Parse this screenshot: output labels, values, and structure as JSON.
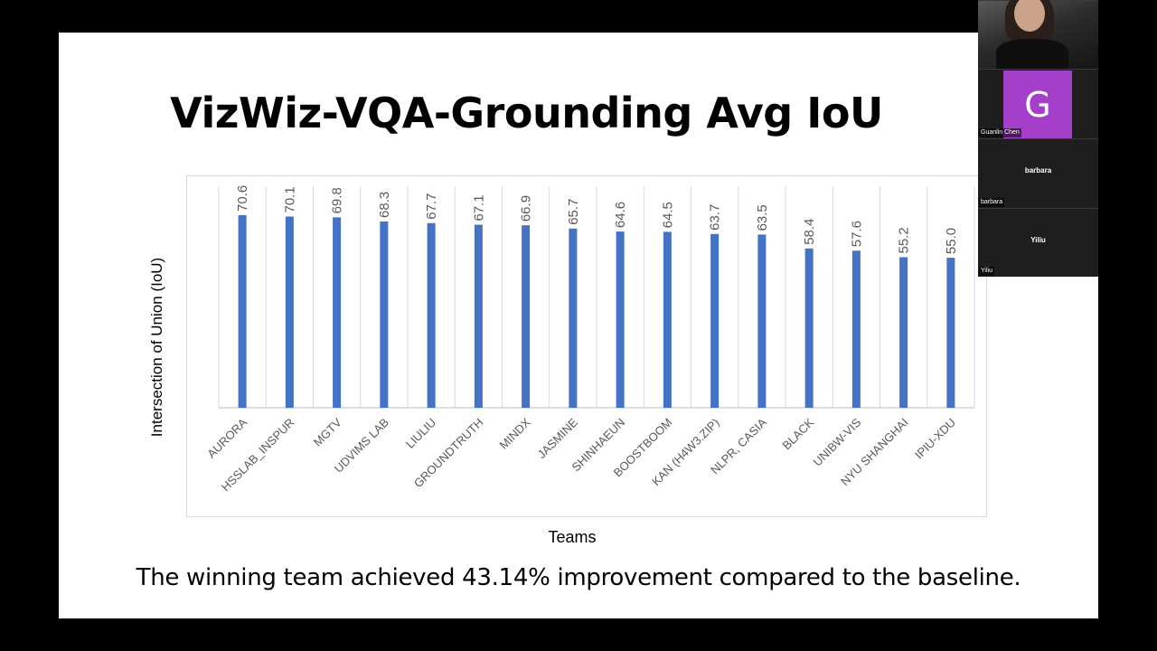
{
  "slide": {
    "title": "VizWiz-VQA-Grounding Avg IoU",
    "caption": "The winning team achieved 43.14% improvement compared to the baseline."
  },
  "chart_data": {
    "type": "bar",
    "categories": [
      "AURORA",
      "HSSLAB_INSPUR",
      "MGTV",
      "UDVIMS LAB",
      "LIULIU",
      "GROUNDTRUTH",
      "MINDX",
      "JASMINE",
      "SHINHAEUN",
      "BOOSTBOOM",
      "KAN (H4W3.ZIP)",
      "NLPR, CASIA",
      "BLACK",
      "UNIBW-VIS",
      "NYU SHANGHAI",
      "IPIU-XDU"
    ],
    "values": [
      70.6,
      70.1,
      69.8,
      68.3,
      67.7,
      67.1,
      66.9,
      65.7,
      64.6,
      64.5,
      63.7,
      63.5,
      58.4,
      57.6,
      55.2,
      55.0
    ],
    "value_labels": [
      "70.6",
      "70.1",
      "69.8",
      "68.3",
      "67.7",
      "67.1",
      "66.9",
      "65.7",
      "64.6",
      "64.5",
      "63.7",
      "63.5",
      "58.4",
      "57.6",
      "55.2",
      "55.0"
    ],
    "xlabel": "Teams",
    "ylabel": "Intersection of Union (IoU)",
    "ylim": [
      0,
      100
    ],
    "grid": "vertical",
    "bar_color": "#4472c4"
  },
  "participants": [
    {
      "name": "Guanlin Chen",
      "initial": "G",
      "avatar_color": "#a53fc9"
    },
    {
      "name": "barbara",
      "display": "barbara"
    },
    {
      "name": "Yiliu",
      "display": "Yiliu"
    }
  ]
}
